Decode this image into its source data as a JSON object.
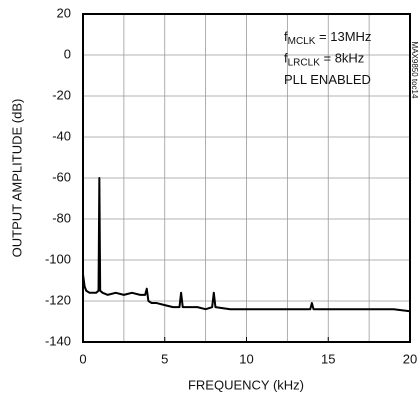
{
  "chart_data": {
    "type": "line",
    "x_label": "FREQUENCY (kHz)",
    "y_label": "OUTPUT AMPLITUDE (dB)",
    "code": "MAX9850 toc14",
    "annotations": [
      {
        "main": "f",
        "sub": "MCLK",
        "rest": " = 13MHz"
      },
      {
        "main": "f",
        "sub": "LRCLK",
        "rest": " = 8kHz"
      },
      {
        "main": "PLL ENABLED"
      }
    ],
    "xlim": [
      0,
      20
    ],
    "ylim": [
      -140,
      20
    ],
    "xticks": [
      0,
      5,
      10,
      15,
      20
    ],
    "yticks": [
      -140,
      -120,
      -100,
      -80,
      -60,
      -40,
      -20,
      0,
      20
    ],
    "xgrid": [
      0,
      2.5,
      5,
      7.5,
      10,
      12.5,
      15,
      17.5,
      20
    ],
    "grid": true,
    "color": "#000000",
    "x": [
      0,
      0.1,
      0.2,
      0.4,
      0.6,
      0.8,
      0.95,
      1.0,
      1.05,
      1.2,
      1.5,
      2,
      2.5,
      3,
      3.5,
      3.8,
      3.9,
      4.0,
      4.2,
      4.5,
      5,
      5.5,
      5.9,
      6.0,
      6.1,
      6.5,
      7,
      7.5,
      7.9,
      8.0,
      8.1,
      9,
      10,
      11,
      12,
      13,
      13.9,
      14.0,
      14.1,
      15,
      16,
      17,
      18,
      19,
      20
    ],
    "values": [
      -107,
      -113,
      -115,
      -116,
      -116,
      -116,
      -115,
      -60,
      -115,
      -116,
      -117,
      -116,
      -117,
      -116,
      -117,
      -117,
      -114,
      -120,
      -121,
      -121,
      -122,
      -123,
      -123,
      -116,
      -123,
      -123,
      -123,
      -124,
      -123,
      -116,
      -123,
      -124,
      -124,
      -124,
      -124,
      -124,
      -124,
      -121,
      -124,
      -124,
      -124,
      -124,
      -124,
      -124,
      -125
    ]
  }
}
